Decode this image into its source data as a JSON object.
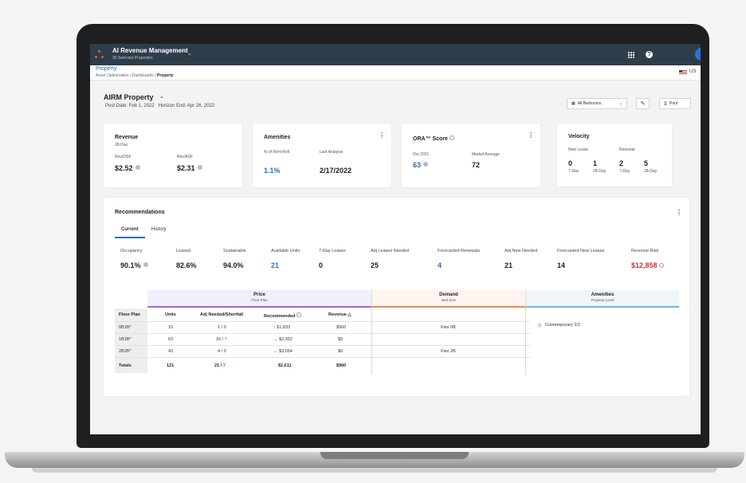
{
  "app": {
    "title": "AI Revenue Management",
    "subtitle": "36 Selected Properties",
    "chevron": "⌄",
    "help": "?"
  },
  "breadcrumb": {
    "title": "Property",
    "path_1": "Asset Optimization",
    "path_2": "Dashboards",
    "current": "Property",
    "separator": "/",
    "locale": "US"
  },
  "header": {
    "property": "AIRM Property",
    "chevron": "⌄",
    "post_date": "Post Date: Feb 1, 2022",
    "horizon_end": "Horizon End: Apr 26, 2022",
    "bedrooms_label": "All Bedrooms",
    "bedrooms_chevron": "⌄",
    "print_label": "Print"
  },
  "revenue": {
    "title": "Revenue",
    "period": "28-Day",
    "rev_osf_label": "Rev/OSF",
    "rev_osf_value": "$2.52",
    "rev_asf_label": "Rev/ASF",
    "rev_asf_value": "$2.31"
  },
  "amenities": {
    "title": "Amenities",
    "rent_roll_label": "% of Rent Roll",
    "rent_roll_value": "1.1%",
    "last_analysis_label": "Last Analysis",
    "last_analysis_value": "2/17/2022",
    "kebab": "⋮"
  },
  "ora": {
    "title": "ORA™ Score",
    "date_label": "Oct 2021",
    "date_value": "63",
    "market_label": "Market Average",
    "market_value": "72",
    "kebab": "⋮"
  },
  "velocity": {
    "title": "Velocity",
    "new_lease_label": "New Lease",
    "renewal_label": "Renewal",
    "values": [
      {
        "value": "0",
        "period": "7-Day"
      },
      {
        "value": "1",
        "period": "28-Day"
      },
      {
        "value": "2",
        "period": "7-Day"
      },
      {
        "value": "5",
        "period": "28-Day"
      }
    ]
  },
  "recommendations": {
    "title": "Recommendations",
    "kebab": "⋮",
    "tabs": [
      {
        "label": "Current"
      },
      {
        "label": "History"
      }
    ],
    "kpis": [
      {
        "label": "Occupancy",
        "value": "90.1%"
      },
      {
        "label": "Leased",
        "value": "82.6%"
      },
      {
        "label": "Sustainable",
        "value": "94.0%"
      },
      {
        "label": "Available Units",
        "value": "21"
      },
      {
        "label": "7-Day Leases",
        "value": "0"
      },
      {
        "label": "Adj Leases Needed",
        "value": "25"
      },
      {
        "label": "Forecasted Renewals",
        "value": "4"
      },
      {
        "label": "Adj New Needed",
        "value": "21"
      },
      {
        "label": "Forecasted New Leases",
        "value": "14"
      },
      {
        "label": "Revenue Risk",
        "value": "$12,858"
      }
    ],
    "table": {
      "price_title": "Price",
      "price_sub": "Floor Plan",
      "demand_title": "Demand",
      "demand_sub": "Bed Size",
      "amenities_title": "Amenities",
      "amenities_sub": "Property Level",
      "columns": [
        "Floor Plan",
        "Units",
        "Adj Needed/Shortfall",
        "Recommended",
        "Revenue"
      ],
      "revenue_sort": "△",
      "rows": [
        {
          "plan": "0B1B*",
          "units": "15",
          "adj": "1",
          "short": "0",
          "arrow": "↑",
          "rec": "$1,833",
          "revenue": "$960",
          "demand": "Flex 0B"
        },
        {
          "plan": "1B1B*",
          "units": "63",
          "adj": "16",
          "short": "7",
          "arrow": "→",
          "rec": "$2,352",
          "revenue": "$0",
          "demand": ""
        },
        {
          "plan": "2B2B*",
          "units": "43",
          "adj": "4",
          "short": "0",
          "arrow": "→",
          "rec": "$3,054",
          "revenue": "$0",
          "demand": "Flex 2B"
        }
      ],
      "totals": {
        "plan": "Totals",
        "units": "121",
        "adj": "21",
        "short": "7",
        "rec": "$2,611",
        "revenue": "$960"
      },
      "slash": "/",
      "amenity_arrow": "↑",
      "amenity_item": "Contemporary 2/2"
    }
  }
}
